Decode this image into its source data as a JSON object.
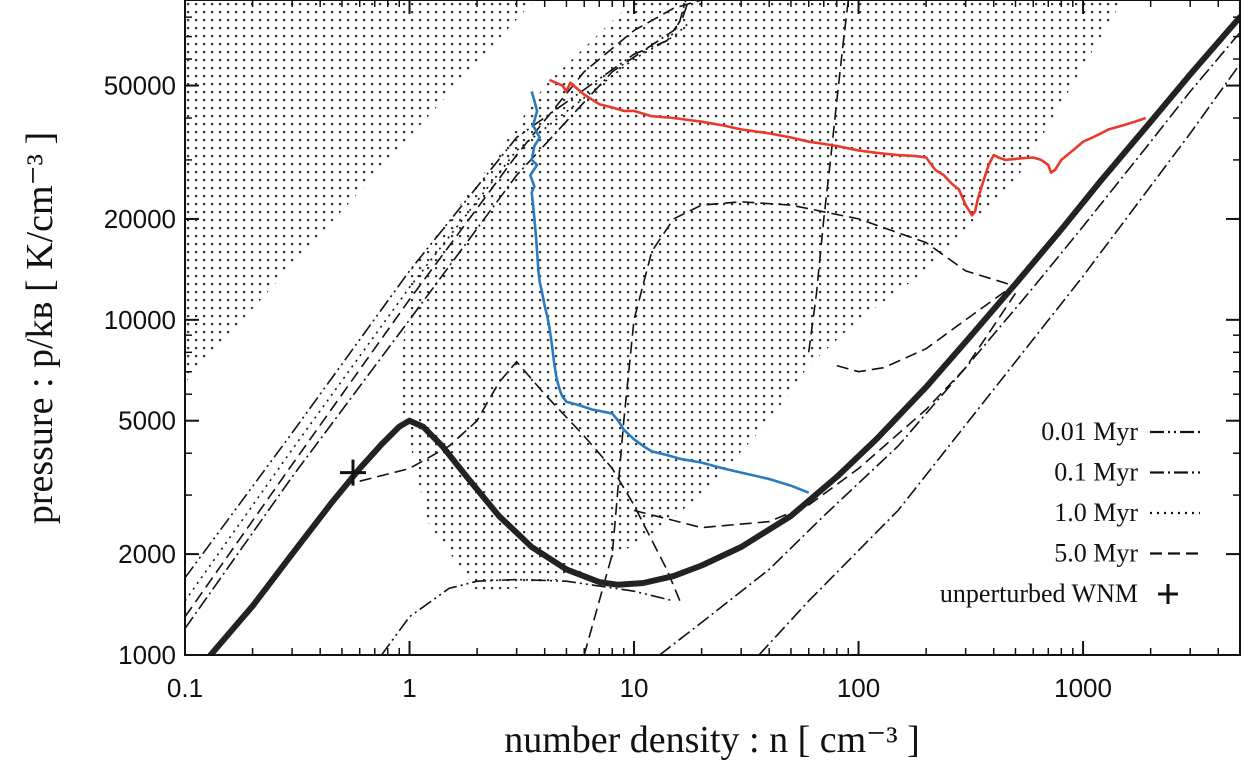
{
  "chart_data": {
    "type": "line",
    "title": "",
    "xlabel": "number density : n [ cm⁻³ ]",
    "ylabel": "pressure : p/kʙ [ K/cm⁻³ ]",
    "x_scale": "log",
    "y_scale": "log",
    "xlim": [
      0.1,
      5000
    ],
    "ylim": [
      1000,
      90000
    ],
    "x_ticks": [
      {
        "value": 0.1,
        "label": "0.1"
      },
      {
        "value": 1,
        "label": "1"
      },
      {
        "value": 10,
        "label": "10"
      },
      {
        "value": 100,
        "label": "100"
      },
      {
        "value": 1000,
        "label": "1000"
      }
    ],
    "y_ticks": [
      {
        "value": 1000,
        "label": "1000"
      },
      {
        "value": 2000,
        "label": "2000"
      },
      {
        "value": 5000,
        "label": "5000"
      },
      {
        "value": 10000,
        "label": "10000"
      },
      {
        "value": 20000,
        "label": "20000"
      },
      {
        "value": 50000,
        "label": "50000"
      }
    ],
    "grid": false,
    "legend_position": "bottom-right",
    "legend": [
      {
        "label": "0.01 Myr",
        "style": "dash-dot-dot"
      },
      {
        "label": "0.1 Myr",
        "style": "dash-dot"
      },
      {
        "label": "1.0 Myr",
        "style": "dotted"
      },
      {
        "label": "5.0 Myr",
        "style": "dashed"
      },
      {
        "label": "unperturbed WNM",
        "style": "plus"
      }
    ],
    "equilibrium_curve": {
      "color": "#222222",
      "x": [
        0.13,
        0.2,
        0.3,
        0.45,
        0.6,
        0.75,
        0.9,
        1.0,
        1.15,
        1.4,
        1.8,
        2.5,
        3.5,
        5,
        7,
        8.5,
        11,
        15,
        20,
        30,
        50,
        80,
        120,
        200,
        300,
        500,
        800,
        1200,
        2000,
        3000,
        5000
      ],
      "y": [
        1000,
        1400,
        2000,
        2850,
        3600,
        4250,
        4800,
        5000,
        4800,
        4200,
        3400,
        2600,
        2100,
        1800,
        1650,
        1620,
        1640,
        1720,
        1850,
        2100,
        2600,
        3400,
        4400,
        6300,
        8600,
        12800,
        18600,
        26000,
        39000,
        54000,
        80000
      ]
    },
    "unperturbed_wnm": {
      "x": 0.56,
      "y": 3500
    },
    "isochrones": [
      {
        "style": "dash-dot-dot",
        "label": "0.01 Myr",
        "branches": [
          {
            "x": [
              0.1,
              0.3,
              1.0,
              3.0,
              10,
              14,
              15,
              16,
              17
            ],
            "y": [
              1700,
              4600,
              14000,
              35000,
              62000,
              68000,
              72000,
              78000,
              90000
            ]
          },
          {
            "x": [
              0.75,
              1.0,
              1.5,
              2.0,
              3.0,
              5.0,
              10,
              15
            ],
            "y": [
              1000,
              1300,
              1580,
              1660,
              1680,
              1660,
              1550,
              1450
            ]
          }
        ]
      },
      {
        "style": "dash-dot",
        "label": "0.1 Myr",
        "branches": [
          {
            "x": [
              0.1,
              0.3,
              1.0,
              3.0,
              8.0,
              12,
              15,
              16.5,
              17.5
            ],
            "y": [
              1200,
              3400,
              10000,
              27000,
              55000,
              66000,
              73000,
              80000,
              90000
            ]
          },
          {
            "x": [
              13,
              20,
              40,
              70,
              150,
              300,
              600,
              1000,
              2000,
              3000,
              5000
            ],
            "y": [
              1000,
              1250,
              1800,
              2600,
              4200,
              7200,
              12500,
              19000,
              34000,
              48000,
              72000
            ]
          },
          {
            "x": [
              36,
              60,
              150,
              400,
              1000,
              3000,
              5000
            ],
            "y": [
              1000,
              1450,
              2700,
              6200,
              13500,
              36000,
              58000
            ]
          }
        ]
      },
      {
        "style": "dotted",
        "label": "1.0 Myr",
        "branches": [
          {
            "x": [
              0.1,
              0.3,
              1.0,
              3.0,
              10,
              15,
              18
            ],
            "y": [
              1450,
              4100,
              12500,
              32000,
              60000,
              70000,
              78000
            ]
          }
        ]
      },
      {
        "style": "dashed",
        "label": "5.0 Myr",
        "branches": [
          {
            "x": [
              0.1,
              0.3,
              1.0,
              3.0,
              6.0,
              10,
              15,
              20
            ],
            "y": [
              1300,
              3700,
              11500,
              31000,
              55000,
              73000,
              85000,
              90000
            ]
          },
          {
            "x": [
              0.6,
              1.0,
              1.5,
              2.0,
              2.2,
              2.5,
              3.0,
              4.0,
              6.0,
              8.0,
              10,
              12,
              14,
              16
            ],
            "y": [
              3300,
              3600,
              4200,
              5000,
              5600,
              6500,
              7500,
              6000,
              4500,
              3600,
              2800,
              2200,
              1800,
              1450
            ]
          },
          {
            "x": [
              6,
              8,
              9,
              10,
              12,
              15,
              20,
              30,
              50,
              100,
              200,
              300,
              500
            ],
            "y": [
              1000,
              2000,
              5000,
              10000,
              16000,
              20000,
              22000,
              22500,
              22000,
              20000,
              17000,
              14000,
              12600
            ]
          },
          {
            "x": [
              60,
              65,
              70,
              75,
              80,
              85,
              90
            ],
            "y": [
              8000,
              12000,
              20000,
              30000,
              45000,
              65000,
              90000
            ]
          },
          {
            "x": [
              10,
              20,
              40,
              60,
              100,
              200,
              300,
              500
            ],
            "y": [
              2700,
              2400,
              2500,
              2800,
              3600,
              5400,
              7200,
              12000
            ]
          },
          {
            "x": [
              80,
              100,
              130,
              200,
              300,
              500
            ],
            "y": [
              7300,
              7000,
              7200,
              8200,
              10000,
              12800
            ]
          }
        ]
      }
    ],
    "stippled_regions": [
      {
        "x": [
          0.1,
          0.1,
          3.6,
          0.1
        ],
        "y": [
          6500,
          90000,
          90000,
          6500
        ]
      },
      {
        "x": [
          1.0,
          2.2,
          4.0,
          10,
          13,
          20,
          40,
          65,
          80,
          200,
          500,
          1500,
          500,
          200,
          100,
          60,
          40,
          20,
          12,
          8,
          5,
          3,
          2,
          1.2,
          0.9,
          1.0
        ],
        "y": [
          14000,
          28000,
          50000,
          90000,
          90000,
          90000,
          90000,
          90000,
          90000,
          90000,
          90000,
          90000,
          26000,
          14000,
          10000,
          7300,
          5000,
          3000,
          2300,
          1950,
          1700,
          1580,
          1550,
          2500,
          6000,
          14000
        ]
      }
    ],
    "series": [
      {
        "name": "",
        "color": "#2a7bc0",
        "x": [
          3.5,
          3.6,
          3.7,
          3.55,
          3.8,
          3.6,
          3.5,
          3.7,
          3.45,
          3.6,
          3.5,
          3.55,
          3.6,
          3.65,
          3.7,
          3.75,
          3.8,
          3.9,
          4.0,
          4.1,
          4.2,
          4.3,
          4.4,
          4.5,
          4.6,
          4.7,
          4.8,
          5.0,
          5.5,
          6.0,
          6.5,
          7.0,
          7.5,
          8.0,
          8.5,
          9.0,
          10,
          11,
          12,
          14,
          16,
          20,
          25,
          30,
          40,
          50,
          60
        ],
        "y": [
          48000,
          45000,
          42000,
          38000,
          35000,
          33000,
          30000,
          29000,
          27000,
          25000,
          24000,
          22000,
          20000,
          18000,
          16000,
          14000,
          13000,
          12000,
          11000,
          10300,
          9500,
          8500,
          7500,
          6800,
          6400,
          6100,
          5900,
          5700,
          5600,
          5500,
          5400,
          5350,
          5300,
          5250,
          5000,
          4700,
          4400,
          4200,
          4050,
          3950,
          3850,
          3750,
          3600,
          3500,
          3350,
          3200,
          3050
        ]
      },
      {
        "name": "",
        "color": "#e8392a",
        "x": [
          4.2,
          4.8,
          5.0,
          5.2,
          6.0,
          7.0,
          8.0,
          9.0,
          10,
          12,
          15,
          20,
          25,
          30,
          40,
          50,
          60,
          70,
          80,
          90,
          100,
          120,
          150,
          180,
          200,
          220,
          240,
          260,
          280,
          300,
          320,
          330,
          340,
          360,
          380,
          400,
          420,
          450,
          500,
          550,
          600,
          650,
          700,
          720,
          750,
          800,
          900,
          1000,
          1100,
          1200,
          1300,
          1500,
          1700,
          1900
        ],
        "y": [
          52000,
          50000,
          48000,
          51000,
          47000,
          44000,
          43000,
          42000,
          42000,
          40500,
          40000,
          39000,
          38000,
          37000,
          36000,
          35000,
          34000,
          33500,
          33000,
          32500,
          32000,
          31500,
          31000,
          30800,
          30500,
          28000,
          27000,
          25500,
          24500,
          22000,
          20500,
          21000,
          23000,
          26000,
          29000,
          31000,
          30500,
          30000,
          30200,
          30400,
          30500,
          30000,
          29000,
          27500,
          28000,
          30000,
          32000,
          34000,
          35000,
          36000,
          37000,
          38000,
          39000,
          40000
        ]
      }
    ]
  }
}
